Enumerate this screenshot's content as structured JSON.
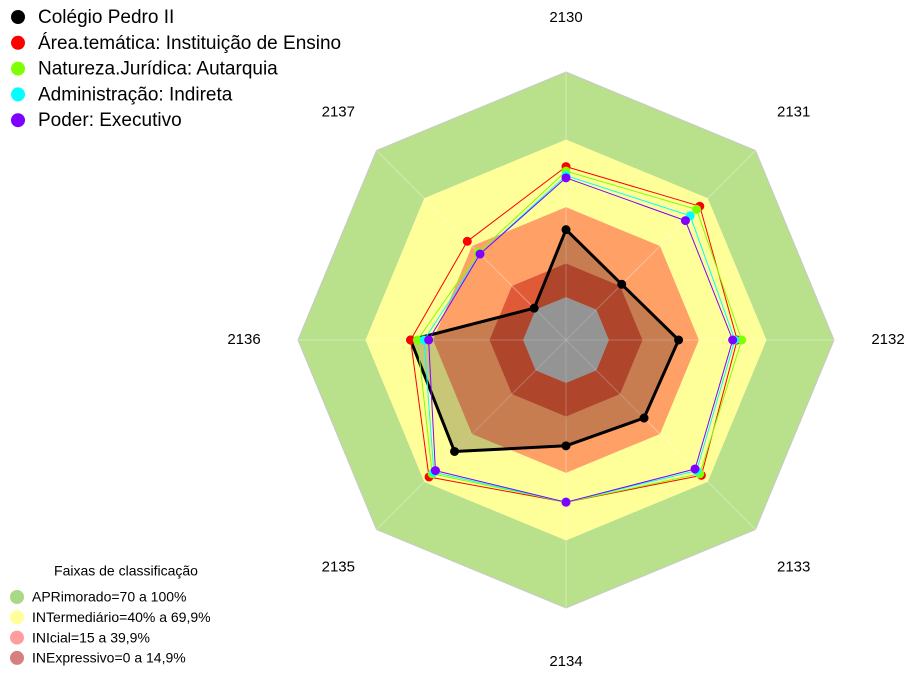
{
  "chart_data": {
    "type": "radar",
    "categories": [
      "2130",
      "2131",
      "2132",
      "2133",
      "2134",
      "2135",
      "2136",
      "2137"
    ],
    "ylim": [
      -19,
      100
    ],
    "series": [
      {
        "name": "Colégio Pedro II",
        "color": "#000000",
        "values": [
          30,
          16,
          31,
          30,
          28,
          51,
          50,
          1
        ]
      },
      {
        "name": "Área.temática: Instituição de Ensino",
        "color": "#ff0000",
        "values": [
          58,
          65,
          57,
          66,
          53,
          67,
          50,
          43
        ]
      },
      {
        "name": "Natureza.Jurídica: Autarquia",
        "color": "#80ff00",
        "values": [
          56,
          63,
          59,
          65,
          53,
          65,
          47,
          36
        ]
      },
      {
        "name": "Administração: Indireta",
        "color": "#00ffff",
        "values": [
          54,
          59,
          56,
          63,
          53,
          64,
          44,
          35
        ]
      },
      {
        "name": "Poder: Executivo",
        "color": "#8000ff",
        "values": [
          53,
          56,
          55,
          62,
          53,
          63,
          42,
          35
        ]
      }
    ],
    "bands_title": "Faixas de classificação",
    "bands": [
      {
        "label": "APRimorado=70 a 100%",
        "from": 70,
        "to": 100,
        "color": "#b9e08b",
        "marker_color": "#a9d886"
      },
      {
        "label": "INTermediário=40% a 69,9%",
        "from": 40,
        "to": 70,
        "color": "#ffff99",
        "marker_color": "#ffff99"
      },
      {
        "label": "INIcial=15 a 39,9%",
        "from": 15,
        "to": 40,
        "color": "#ffa066",
        "marker_color": "#ff9c9c"
      },
      {
        "label": "INExpressivo=0 a 14,9%",
        "from": 0,
        "to": 15,
        "color": "#e05a38",
        "marker_color": "#d77f7f"
      }
    ]
  }
}
